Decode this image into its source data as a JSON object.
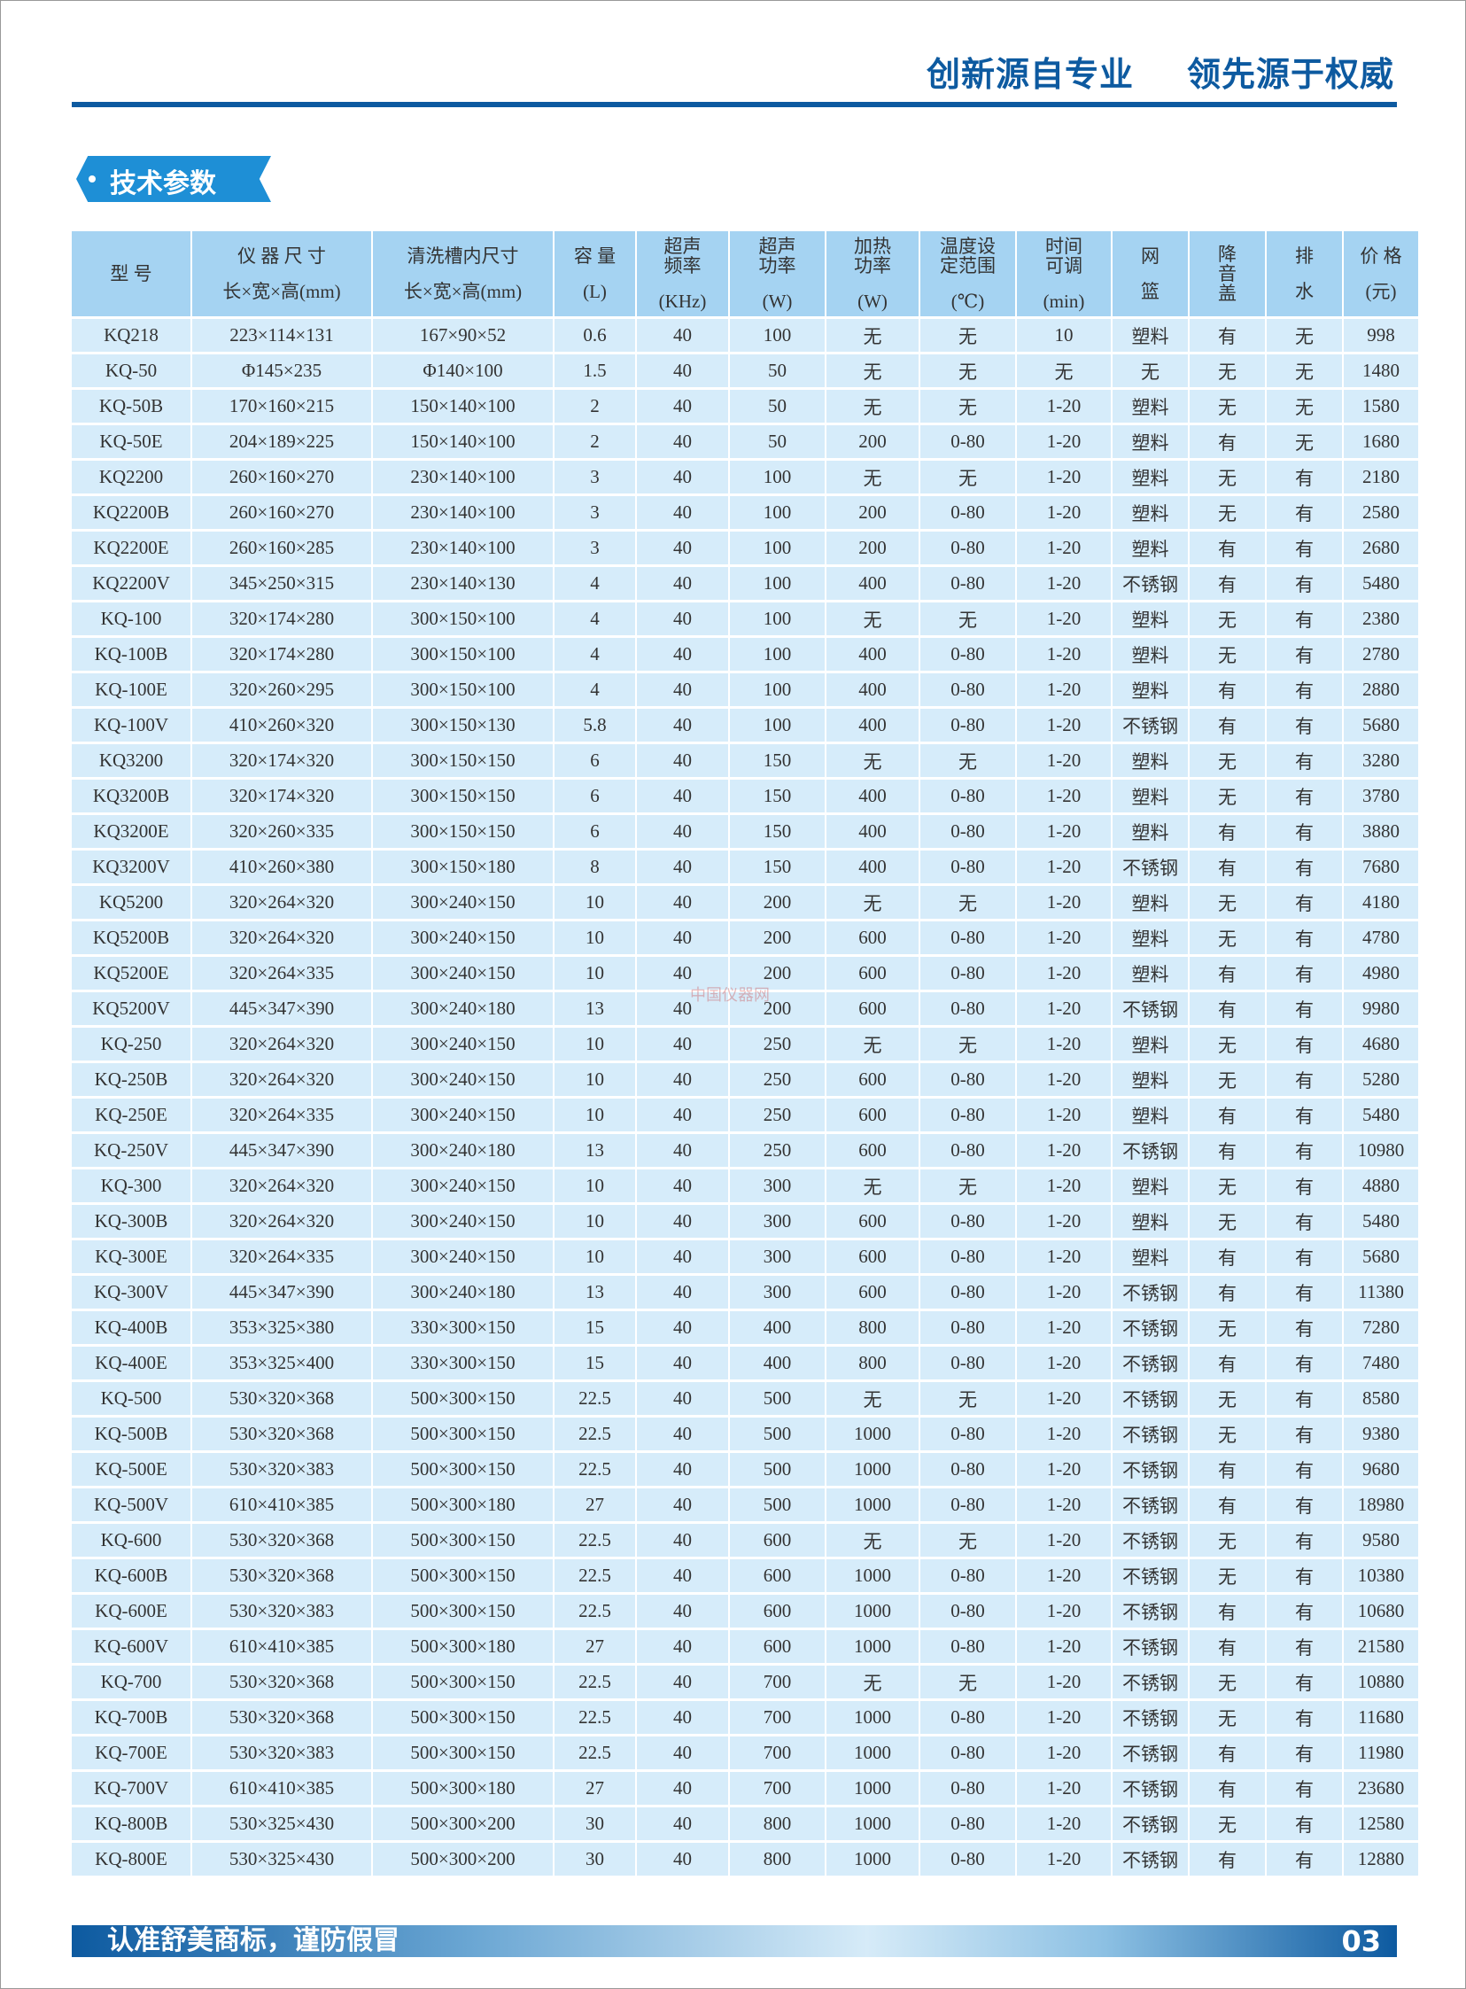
{
  "header": {
    "slogan_left": "创新源自专业",
    "slogan_right": "领先源于权威"
  },
  "section": {
    "title": "技术参数"
  },
  "colors": {
    "brand": "#0d5aa0",
    "header_cell": "#a5d3f2",
    "row_cell": "#d6ecfa"
  },
  "table": {
    "headers": [
      {
        "main": "型 号",
        "sub": ""
      },
      {
        "main": "仪 器 尺 寸",
        "sub": "长×宽×高(mm)"
      },
      {
        "main": "清洗槽内尺寸",
        "sub": "长×宽×高(mm)"
      },
      {
        "main": "容 量",
        "sub": "(L)"
      },
      {
        "main": "超声 频率",
        "sub": "(KHz)"
      },
      {
        "main": "超声 功率",
        "sub": "(W)"
      },
      {
        "main": "加热 功率",
        "sub": "(W)"
      },
      {
        "main": "温度设 定范围",
        "sub": "(℃)"
      },
      {
        "main": "时间 可调",
        "sub": "(min)"
      },
      {
        "main": "网",
        "sub": "篮"
      },
      {
        "main": "降 音 盖",
        "sub": ""
      },
      {
        "main": "排",
        "sub": "水"
      },
      {
        "main": "价 格",
        "sub": "(元)"
      }
    ],
    "rows": [
      [
        "KQ218",
        "223×114×131",
        "167×90×52",
        "0.6",
        "40",
        "100",
        "无",
        "无",
        "10",
        "塑料",
        "有",
        "无",
        "998"
      ],
      [
        "KQ-50",
        "Φ145×235",
        "Φ140×100",
        "1.5",
        "40",
        "50",
        "无",
        "无",
        "无",
        "无",
        "无",
        "无",
        "1480"
      ],
      [
        "KQ-50B",
        "170×160×215",
        "150×140×100",
        "2",
        "40",
        "50",
        "无",
        "无",
        "1-20",
        "塑料",
        "无",
        "无",
        "1580"
      ],
      [
        "KQ-50E",
        "204×189×225",
        "150×140×100",
        "2",
        "40",
        "50",
        "200",
        "0-80",
        "1-20",
        "塑料",
        "有",
        "无",
        "1680"
      ],
      [
        "KQ2200",
        "260×160×270",
        "230×140×100",
        "3",
        "40",
        "100",
        "无",
        "无",
        "1-20",
        "塑料",
        "无",
        "有",
        "2180"
      ],
      [
        "KQ2200B",
        "260×160×270",
        "230×140×100",
        "3",
        "40",
        "100",
        "200",
        "0-80",
        "1-20",
        "塑料",
        "无",
        "有",
        "2580"
      ],
      [
        "KQ2200E",
        "260×160×285",
        "230×140×100",
        "3",
        "40",
        "100",
        "200",
        "0-80",
        "1-20",
        "塑料",
        "有",
        "有",
        "2680"
      ],
      [
        "KQ2200V",
        "345×250×315",
        "230×140×130",
        "4",
        "40",
        "100",
        "400",
        "0-80",
        "1-20",
        "不锈钢",
        "有",
        "有",
        "5480"
      ],
      [
        "KQ-100",
        "320×174×280",
        "300×150×100",
        "4",
        "40",
        "100",
        "无",
        "无",
        "1-20",
        "塑料",
        "无",
        "有",
        "2380"
      ],
      [
        "KQ-100B",
        "320×174×280",
        "300×150×100",
        "4",
        "40",
        "100",
        "400",
        "0-80",
        "1-20",
        "塑料",
        "无",
        "有",
        "2780"
      ],
      [
        "KQ-100E",
        "320×260×295",
        "300×150×100",
        "4",
        "40",
        "100",
        "400",
        "0-80",
        "1-20",
        "塑料",
        "有",
        "有",
        "2880"
      ],
      [
        "KQ-100V",
        "410×260×320",
        "300×150×130",
        "5.8",
        "40",
        "100",
        "400",
        "0-80",
        "1-20",
        "不锈钢",
        "有",
        "有",
        "5680"
      ],
      [
        "KQ3200",
        "320×174×320",
        "300×150×150",
        "6",
        "40",
        "150",
        "无",
        "无",
        "1-20",
        "塑料",
        "无",
        "有",
        "3280"
      ],
      [
        "KQ3200B",
        "320×174×320",
        "300×150×150",
        "6",
        "40",
        "150",
        "400",
        "0-80",
        "1-20",
        "塑料",
        "无",
        "有",
        "3780"
      ],
      [
        "KQ3200E",
        "320×260×335",
        "300×150×150",
        "6",
        "40",
        "150",
        "400",
        "0-80",
        "1-20",
        "塑料",
        "有",
        "有",
        "3880"
      ],
      [
        "KQ3200V",
        "410×260×380",
        "300×150×180",
        "8",
        "40",
        "150",
        "400",
        "0-80",
        "1-20",
        "不锈钢",
        "有",
        "有",
        "7680"
      ],
      [
        "KQ5200",
        "320×264×320",
        "300×240×150",
        "10",
        "40",
        "200",
        "无",
        "无",
        "1-20",
        "塑料",
        "无",
        "有",
        "4180"
      ],
      [
        "KQ5200B",
        "320×264×320",
        "300×240×150",
        "10",
        "40",
        "200",
        "600",
        "0-80",
        "1-20",
        "塑料",
        "无",
        "有",
        "4780"
      ],
      [
        "KQ5200E",
        "320×264×335",
        "300×240×150",
        "10",
        "40",
        "200",
        "600",
        "0-80",
        "1-20",
        "塑料",
        "有",
        "有",
        "4980"
      ],
      [
        "KQ5200V",
        "445×347×390",
        "300×240×180",
        "13",
        "40",
        "200",
        "600",
        "0-80",
        "1-20",
        "不锈钢",
        "有",
        "有",
        "9980"
      ],
      [
        "KQ-250",
        "320×264×320",
        "300×240×150",
        "10",
        "40",
        "250",
        "无",
        "无",
        "1-20",
        "塑料",
        "无",
        "有",
        "4680"
      ],
      [
        "KQ-250B",
        "320×264×320",
        "300×240×150",
        "10",
        "40",
        "250",
        "600",
        "0-80",
        "1-20",
        "塑料",
        "无",
        "有",
        "5280"
      ],
      [
        "KQ-250E",
        "320×264×335",
        "300×240×150",
        "10",
        "40",
        "250",
        "600",
        "0-80",
        "1-20",
        "塑料",
        "有",
        "有",
        "5480"
      ],
      [
        "KQ-250V",
        "445×347×390",
        "300×240×180",
        "13",
        "40",
        "250",
        "600",
        "0-80",
        "1-20",
        "不锈钢",
        "有",
        "有",
        "10980"
      ],
      [
        "KQ-300",
        "320×264×320",
        "300×240×150",
        "10",
        "40",
        "300",
        "无",
        "无",
        "1-20",
        "塑料",
        "无",
        "有",
        "4880"
      ],
      [
        "KQ-300B",
        "320×264×320",
        "300×240×150",
        "10",
        "40",
        "300",
        "600",
        "0-80",
        "1-20",
        "塑料",
        "无",
        "有",
        "5480"
      ],
      [
        "KQ-300E",
        "320×264×335",
        "300×240×150",
        "10",
        "40",
        "300",
        "600",
        "0-80",
        "1-20",
        "塑料",
        "有",
        "有",
        "5680"
      ],
      [
        "KQ-300V",
        "445×347×390",
        "300×240×180",
        "13",
        "40",
        "300",
        "600",
        "0-80",
        "1-20",
        "不锈钢",
        "有",
        "有",
        "11380"
      ],
      [
        "KQ-400B",
        "353×325×380",
        "330×300×150",
        "15",
        "40",
        "400",
        "800",
        "0-80",
        "1-20",
        "不锈钢",
        "无",
        "有",
        "7280"
      ],
      [
        "KQ-400E",
        "353×325×400",
        "330×300×150",
        "15",
        "40",
        "400",
        "800",
        "0-80",
        "1-20",
        "不锈钢",
        "有",
        "有",
        "7480"
      ],
      [
        "KQ-500",
        "530×320×368",
        "500×300×150",
        "22.5",
        "40",
        "500",
        "无",
        "无",
        "1-20",
        "不锈钢",
        "无",
        "有",
        "8580"
      ],
      [
        "KQ-500B",
        "530×320×368",
        "500×300×150",
        "22.5",
        "40",
        "500",
        "1000",
        "0-80",
        "1-20",
        "不锈钢",
        "无",
        "有",
        "9380"
      ],
      [
        "KQ-500E",
        "530×320×383",
        "500×300×150",
        "22.5",
        "40",
        "500",
        "1000",
        "0-80",
        "1-20",
        "不锈钢",
        "有",
        "有",
        "9680"
      ],
      [
        "KQ-500V",
        "610×410×385",
        "500×300×180",
        "27",
        "40",
        "500",
        "1000",
        "0-80",
        "1-20",
        "不锈钢",
        "有",
        "有",
        "18980"
      ],
      [
        "KQ-600",
        "530×320×368",
        "500×300×150",
        "22.5",
        "40",
        "600",
        "无",
        "无",
        "1-20",
        "不锈钢",
        "无",
        "有",
        "9580"
      ],
      [
        "KQ-600B",
        "530×320×368",
        "500×300×150",
        "22.5",
        "40",
        "600",
        "1000",
        "0-80",
        "1-20",
        "不锈钢",
        "无",
        "有",
        "10380"
      ],
      [
        "KQ-600E",
        "530×320×383",
        "500×300×150",
        "22.5",
        "40",
        "600",
        "1000",
        "0-80",
        "1-20",
        "不锈钢",
        "有",
        "有",
        "10680"
      ],
      [
        "KQ-600V",
        "610×410×385",
        "500×300×180",
        "27",
        "40",
        "600",
        "1000",
        "0-80",
        "1-20",
        "不锈钢",
        "有",
        "有",
        "21580"
      ],
      [
        "KQ-700",
        "530×320×368",
        "500×300×150",
        "22.5",
        "40",
        "700",
        "无",
        "无",
        "1-20",
        "不锈钢",
        "无",
        "有",
        "10880"
      ],
      [
        "KQ-700B",
        "530×320×368",
        "500×300×150",
        "22.5",
        "40",
        "700",
        "1000",
        "0-80",
        "1-20",
        "不锈钢",
        "无",
        "有",
        "11680"
      ],
      [
        "KQ-700E",
        "530×320×383",
        "500×300×150",
        "22.5",
        "40",
        "700",
        "1000",
        "0-80",
        "1-20",
        "不锈钢",
        "有",
        "有",
        "11980"
      ],
      [
        "KQ-700V",
        "610×410×385",
        "500×300×180",
        "27",
        "40",
        "700",
        "1000",
        "0-80",
        "1-20",
        "不锈钢",
        "有",
        "有",
        "23680"
      ],
      [
        "KQ-800B",
        "530×325×430",
        "500×300×200",
        "30",
        "40",
        "800",
        "1000",
        "0-80",
        "1-20",
        "不锈钢",
        "无",
        "有",
        "12580"
      ],
      [
        "KQ-800E",
        "530×325×430",
        "500×300×200",
        "30",
        "40",
        "800",
        "1000",
        "0-80",
        "1-20",
        "不锈钢",
        "有",
        "有",
        "12880"
      ]
    ]
  },
  "watermark": "中国仪器网",
  "footer": {
    "text": "认准舒美商标，谨防假冒",
    "page": "03"
  }
}
